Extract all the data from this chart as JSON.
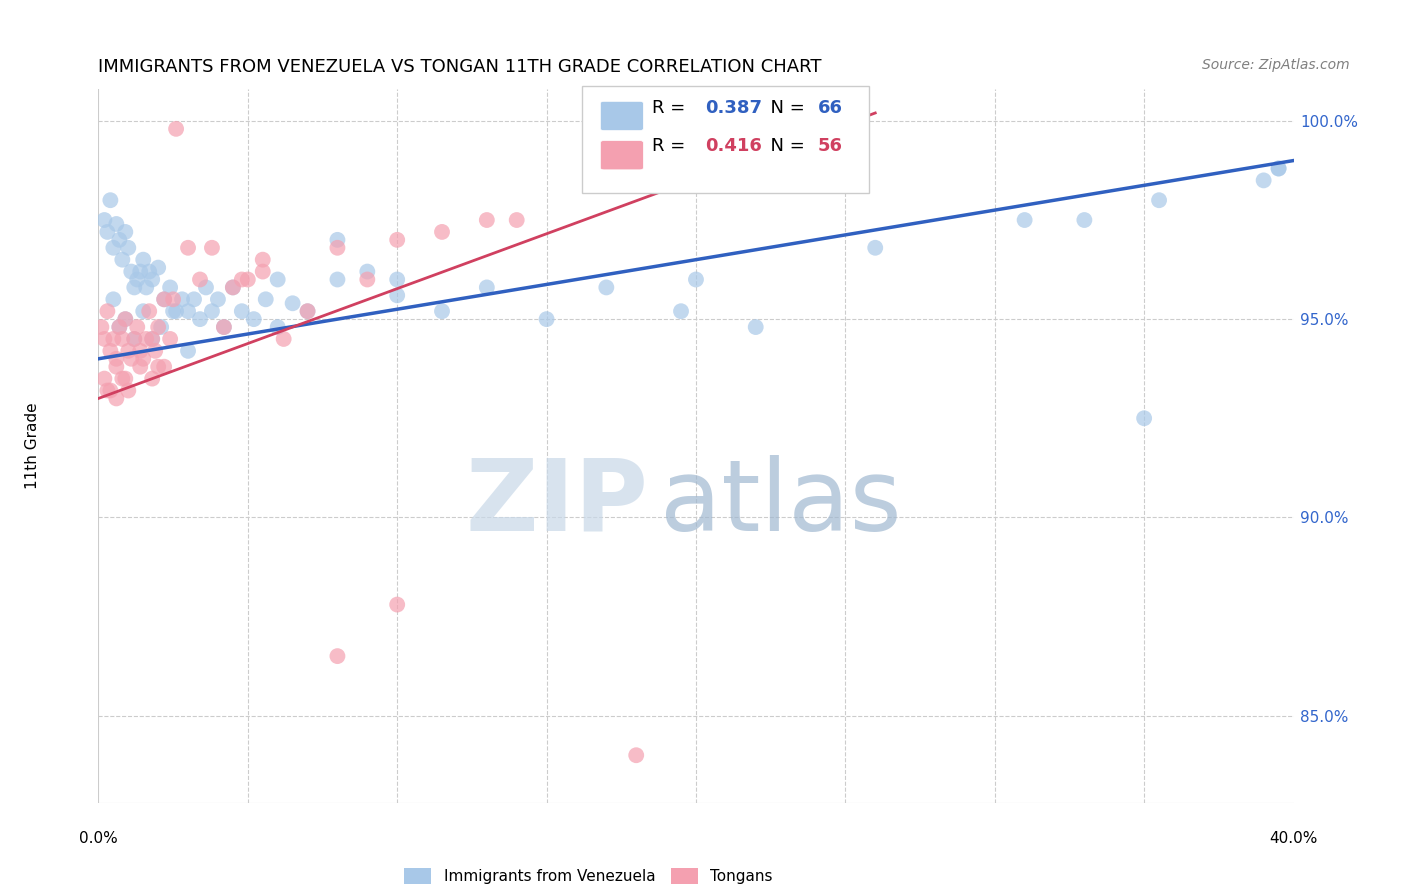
{
  "title": "IMMIGRANTS FROM VENEZUELA VS TONGAN 11TH GRADE CORRELATION CHART",
  "source": "Source: ZipAtlas.com",
  "ylabel": "11th Grade",
  "xmin": 0.0,
  "xmax": 0.4,
  "ymin": 0.828,
  "ymax": 1.008,
  "yticks": [
    0.85,
    0.9,
    0.95,
    1.0
  ],
  "ytick_labels": [
    "85.0%",
    "90.0%",
    "95.0%",
    "100.0%"
  ],
  "xtick_labels": [
    "0.0%",
    "",
    "",
    "",
    "",
    "",
    "",
    "",
    "40.0%"
  ],
  "blue_R": 0.387,
  "blue_N": 66,
  "pink_R": 0.416,
  "pink_N": 56,
  "blue_color": "#a8c8e8",
  "pink_color": "#f4a0b0",
  "blue_line_color": "#3060c0",
  "pink_line_color": "#d04060",
  "blue_line_x0": 0.0,
  "blue_line_y0": 0.94,
  "blue_line_x1": 0.4,
  "blue_line_y1": 0.99,
  "pink_line_x0": 0.0,
  "pink_line_y0": 0.93,
  "pink_line_x1": 0.26,
  "pink_line_y1": 1.002,
  "watermark_zip_color": "#c8d8e8",
  "watermark_atlas_color": "#a0b8d0",
  "legend_box_color": "#ffffff",
  "legend_border_color": "#cccccc",
  "grid_color": "#cccccc",
  "right_tick_color": "#3366cc",
  "blue_x": [
    0.002,
    0.003,
    0.004,
    0.005,
    0.006,
    0.007,
    0.008,
    0.009,
    0.01,
    0.011,
    0.012,
    0.013,
    0.014,
    0.015,
    0.016,
    0.017,
    0.018,
    0.02,
    0.022,
    0.024,
    0.026,
    0.028,
    0.03,
    0.032,
    0.034,
    0.036,
    0.038,
    0.04,
    0.042,
    0.045,
    0.048,
    0.052,
    0.056,
    0.06,
    0.065,
    0.07,
    0.08,
    0.09,
    0.1,
    0.115,
    0.13,
    0.15,
    0.17,
    0.195,
    0.22,
    0.26,
    0.31,
    0.355,
    0.39,
    0.005,
    0.007,
    0.009,
    0.012,
    0.015,
    0.018,
    0.021,
    0.025,
    0.03,
    0.06,
    0.08,
    0.1,
    0.2,
    0.33,
    0.35,
    0.395,
    0.395
  ],
  "blue_y": [
    0.975,
    0.972,
    0.98,
    0.968,
    0.974,
    0.97,
    0.965,
    0.972,
    0.968,
    0.962,
    0.958,
    0.96,
    0.962,
    0.965,
    0.958,
    0.962,
    0.96,
    0.963,
    0.955,
    0.958,
    0.952,
    0.955,
    0.952,
    0.955,
    0.95,
    0.958,
    0.952,
    0.955,
    0.948,
    0.958,
    0.952,
    0.95,
    0.955,
    0.948,
    0.954,
    0.952,
    0.97,
    0.962,
    0.956,
    0.952,
    0.958,
    0.95,
    0.958,
    0.952,
    0.948,
    0.968,
    0.975,
    0.98,
    0.985,
    0.955,
    0.948,
    0.95,
    0.945,
    0.952,
    0.945,
    0.948,
    0.952,
    0.942,
    0.96,
    0.96,
    0.96,
    0.96,
    0.975,
    0.925,
    0.988,
    0.988
  ],
  "pink_x": [
    0.001,
    0.002,
    0.003,
    0.004,
    0.005,
    0.006,
    0.007,
    0.008,
    0.009,
    0.01,
    0.011,
    0.012,
    0.013,
    0.014,
    0.015,
    0.016,
    0.017,
    0.018,
    0.019,
    0.02,
    0.022,
    0.024,
    0.026,
    0.03,
    0.034,
    0.038,
    0.042,
    0.048,
    0.055,
    0.062,
    0.07,
    0.08,
    0.09,
    0.1,
    0.115,
    0.13,
    0.002,
    0.004,
    0.006,
    0.008,
    0.01,
    0.014,
    0.018,
    0.022,
    0.003,
    0.006,
    0.009,
    0.02,
    0.045,
    0.055,
    0.025,
    0.05,
    0.08,
    0.1,
    0.14,
    0.18
  ],
  "pink_y": [
    0.948,
    0.945,
    0.952,
    0.942,
    0.945,
    0.94,
    0.948,
    0.945,
    0.95,
    0.942,
    0.94,
    0.945,
    0.948,
    0.942,
    0.94,
    0.945,
    0.952,
    0.945,
    0.942,
    0.948,
    0.955,
    0.945,
    0.998,
    0.968,
    0.96,
    0.968,
    0.948,
    0.96,
    0.962,
    0.945,
    0.952,
    0.968,
    0.96,
    0.97,
    0.972,
    0.975,
    0.935,
    0.932,
    0.938,
    0.935,
    0.932,
    0.938,
    0.935,
    0.938,
    0.932,
    0.93,
    0.935,
    0.938,
    0.958,
    0.965,
    0.955,
    0.96,
    0.865,
    0.878,
    0.975,
    0.84
  ]
}
